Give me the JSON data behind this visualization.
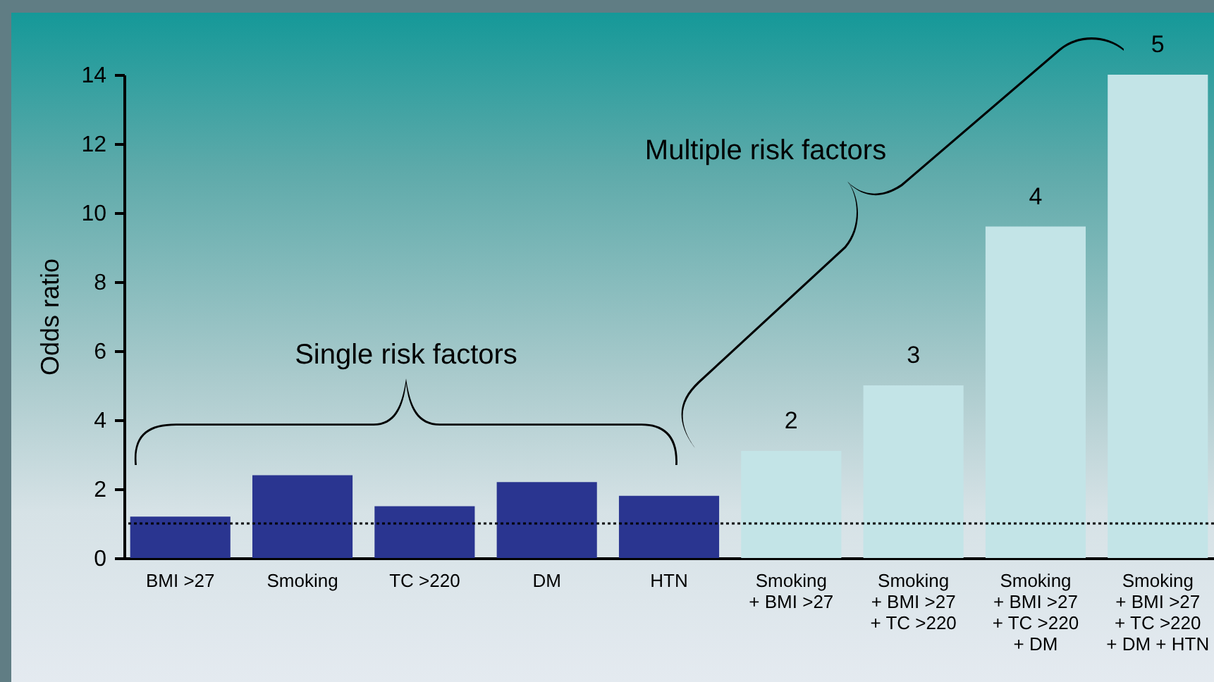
{
  "chart_data": {
    "type": "bar",
    "ylabel": "Odds ratio",
    "categories": [
      "BMI >27",
      "Smoking",
      "TC >220",
      "DM",
      "HTN",
      "Smoking\n+ BMI >27",
      "Smoking\n+ BMI >27\n+ TC >220",
      "Smoking\n+ BMI >27\n+ TC >220\n+ DM",
      "Smoking\n+ BMI >27\n+ TC >220\n+ DM + HTN"
    ],
    "values": [
      1.2,
      2.4,
      1.5,
      2.2,
      1.8,
      3.1,
      5.0,
      9.6,
      14.0
    ],
    "colors": [
      "#2a3590",
      "#2a3590",
      "#2a3590",
      "#2a3590",
      "#2a3590",
      "#c3e4e7",
      "#c3e4e7",
      "#c3e4e7",
      "#c3e4e7"
    ],
    "ylim": [
      0,
      14
    ],
    "yticks": [
      0,
      2,
      4,
      6,
      8,
      10,
      12,
      14
    ],
    "grid": false,
    "ref_lines": [
      {
        "axis": "y",
        "value": 1,
        "color": "#000000",
        "line_style": "dotted"
      }
    ],
    "annotations": [
      "Single risk factors",
      "Multiple risk factors",
      {
        "text": "2",
        "x": "Smoking\n+ BMI >27",
        "y": 3.1
      },
      {
        "text": "3",
        "x": "Smoking\n+ BMI >27\n+ TC >220",
        "y": 5.0
      },
      {
        "text": "4",
        "x": "Smoking\n+ BMI >27\n+ TC >220\n+ DM",
        "y": 9.6
      },
      {
        "text": "5",
        "x": "Smoking\n+ BMI >27\n+ TC >220\n+ DM + HTN",
        "y": 14.0
      }
    ]
  }
}
